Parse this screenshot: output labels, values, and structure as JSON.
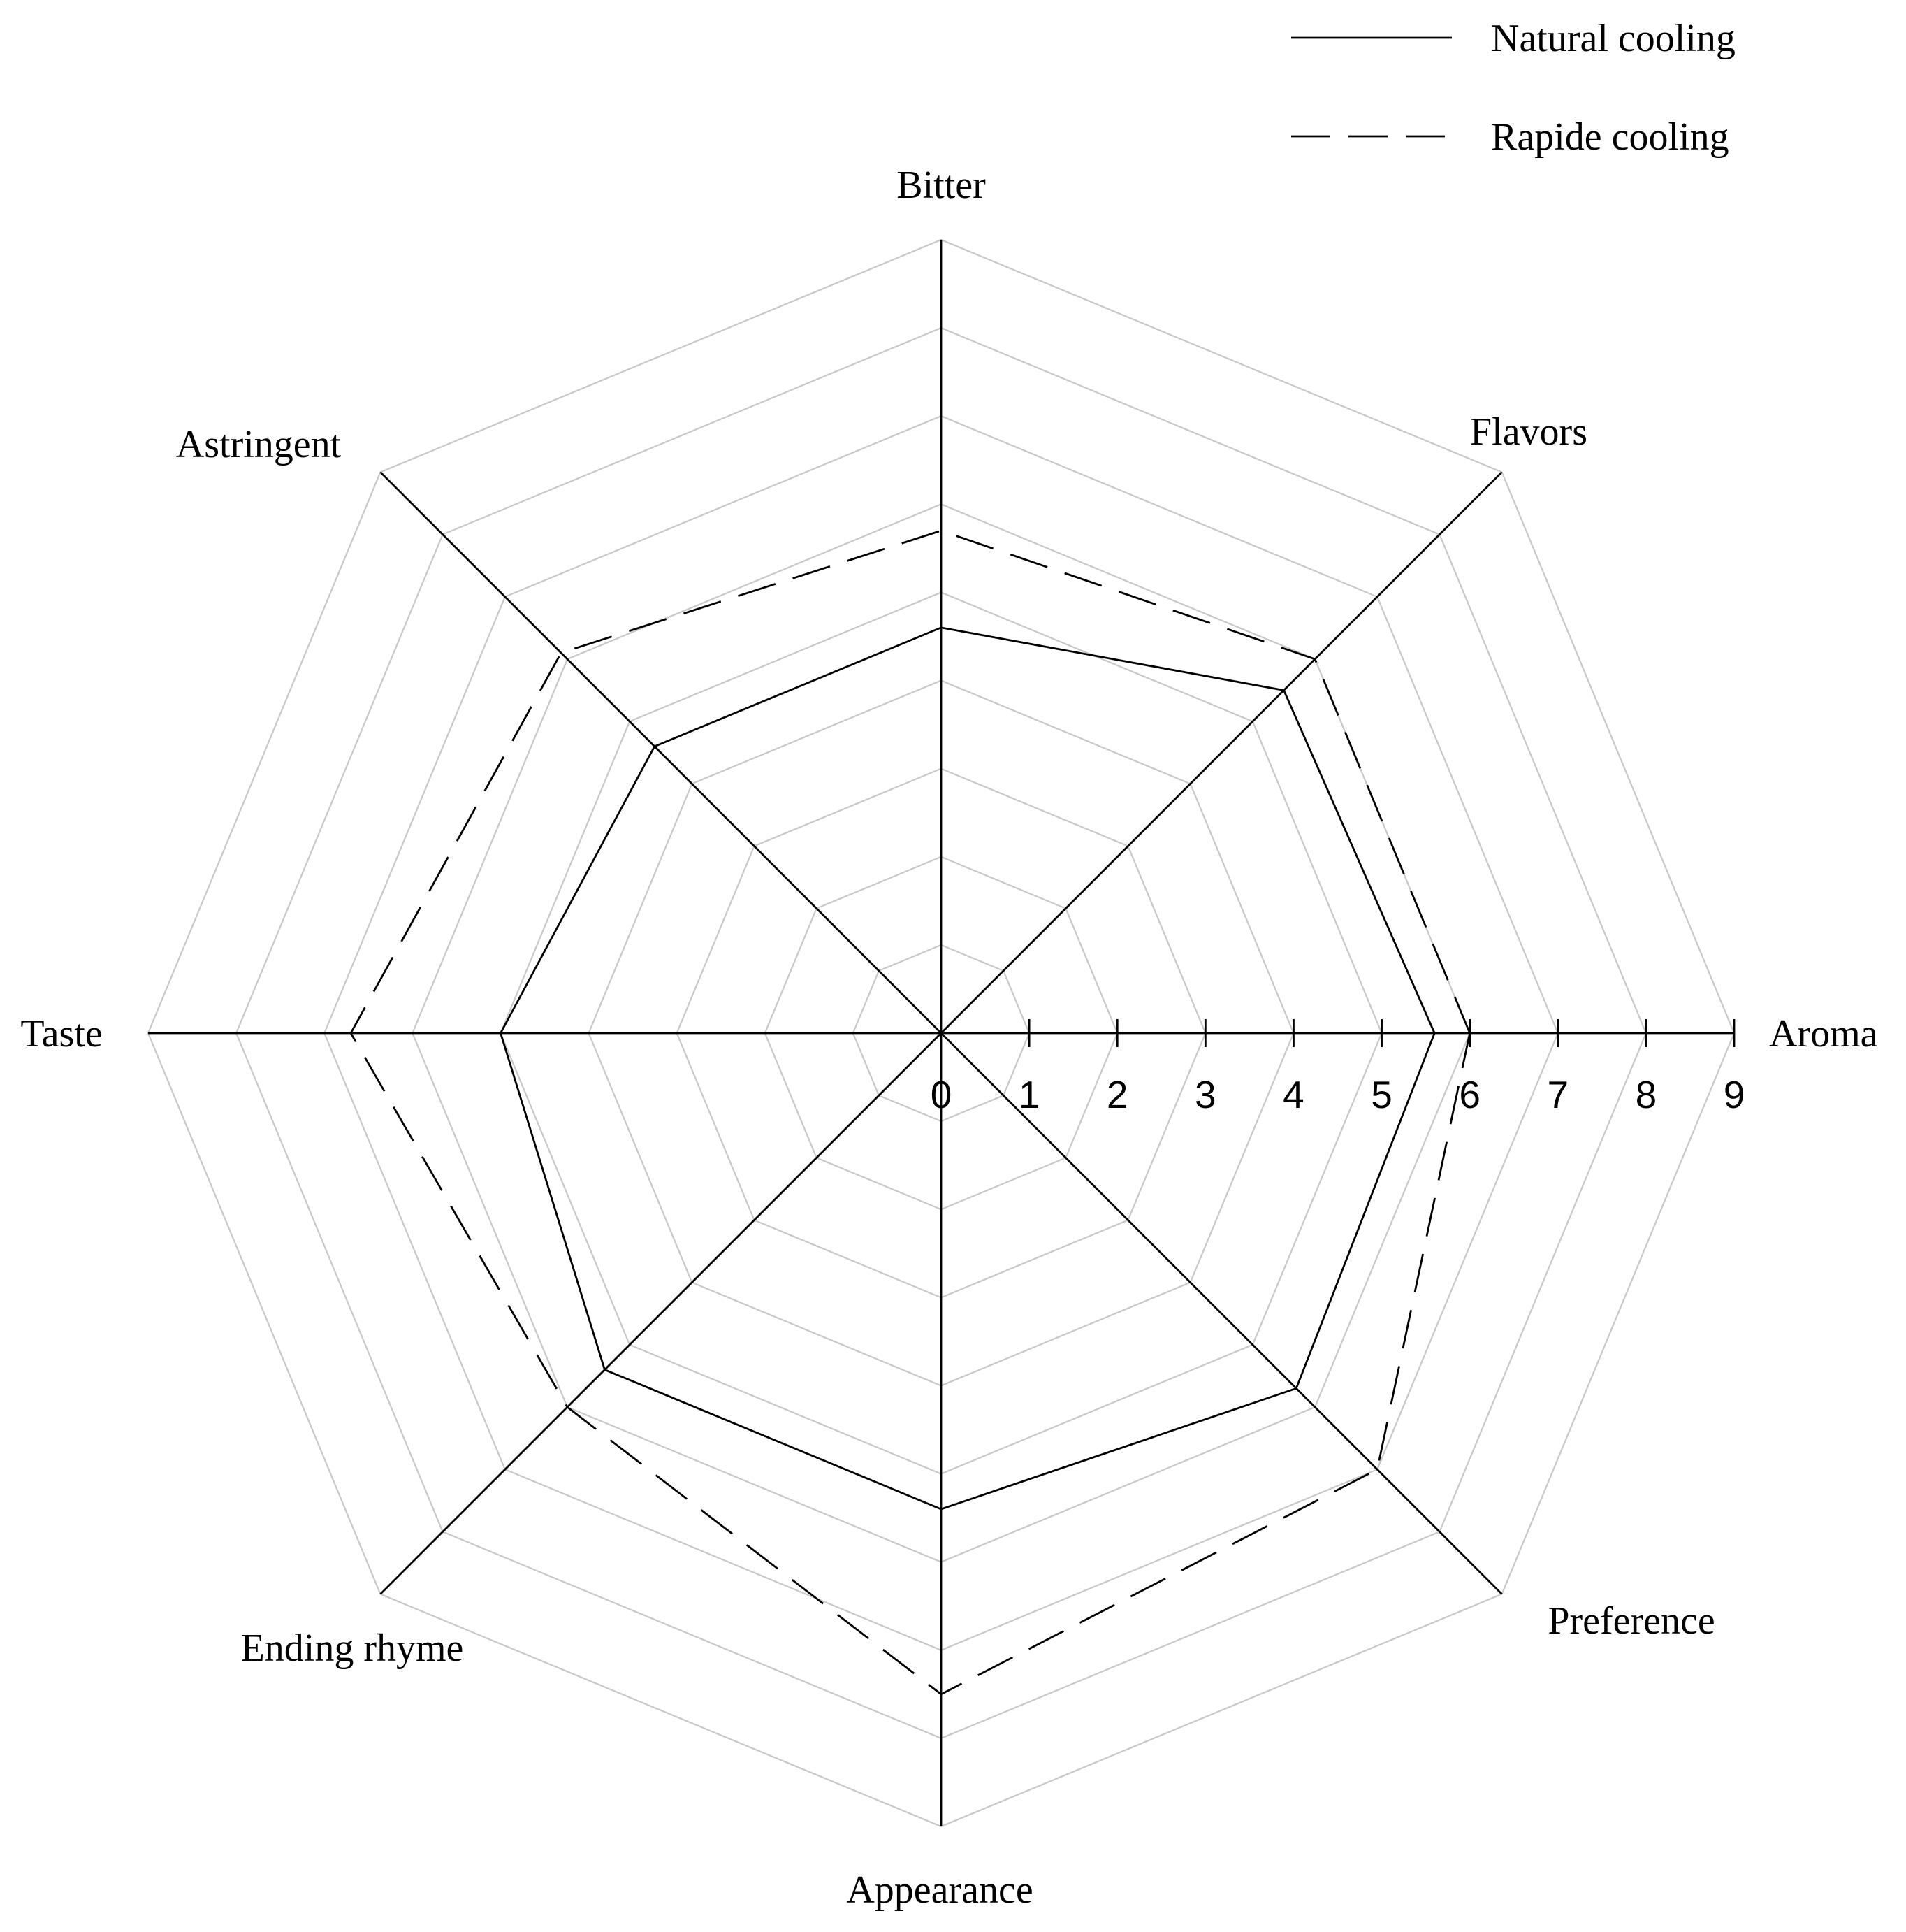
{
  "chart_data": {
    "type": "radar",
    "axes": [
      "Aroma",
      "Flavors",
      "Bitter",
      "Astringent",
      "Taste",
      "Ending rhyme",
      "Appearance",
      "Preference"
    ],
    "scale": {
      "min": 0,
      "max": 9,
      "ticks": [
        "0",
        "1",
        "2",
        "3",
        "4",
        "5",
        "6",
        "7",
        "8",
        "9"
      ]
    },
    "series": [
      {
        "name": "Natural cooling",
        "style": "solid",
        "values": [
          5.6,
          5.5,
          4.6,
          4.6,
          5.0,
          5.4,
          5.4,
          5.7
        ]
      },
      {
        "name": "Rapide cooling",
        "style": "dashed",
        "values": [
          6.0,
          6.0,
          5.7,
          6.1,
          6.7,
          6.0,
          7.5,
          7.0
        ]
      }
    ],
    "grid": true,
    "legend_position": "top-right",
    "colors": {
      "series": "#000000",
      "grid": "#c8c8c8"
    }
  }
}
